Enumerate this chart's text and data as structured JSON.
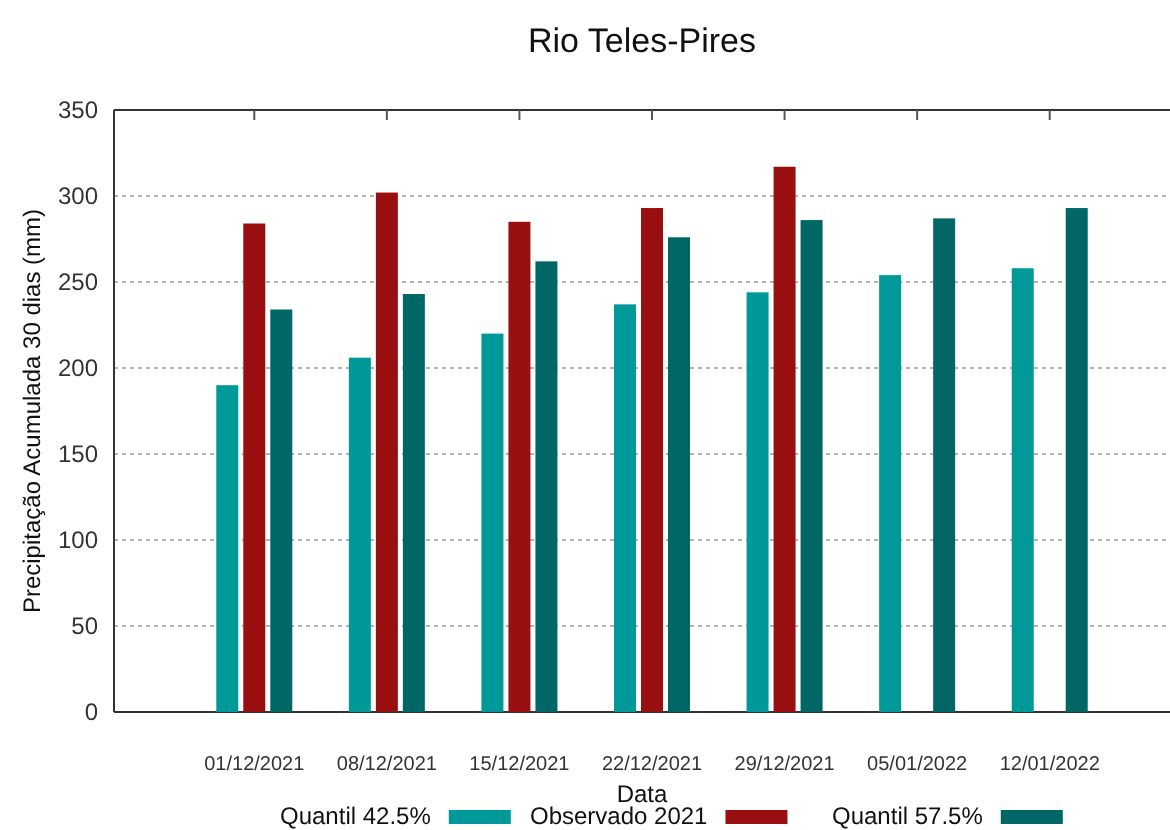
{
  "chart_data": {
    "type": "bar",
    "title": "Rio Teles-Pires",
    "xlabel": "Data",
    "ylabel": "Precipitação Acumulada 30 dias (mm)",
    "categories": [
      "01/12/2021",
      "08/12/2021",
      "15/12/2021",
      "22/12/2021",
      "29/12/2021",
      "05/01/2022",
      "12/01/2022"
    ],
    "series": [
      {
        "name": "Quantil 42.5%",
        "color": "#009999",
        "values": [
          190,
          206,
          220,
          237,
          244,
          254,
          258
        ]
      },
      {
        "name": "Observado 2021",
        "color": "#990e0e",
        "values": [
          284,
          302,
          285,
          293,
          317,
          null,
          null
        ]
      },
      {
        "name": "Quantil 57.5%",
        "color": "#006766",
        "values": [
          234,
          243,
          262,
          276,
          286,
          287,
          293
        ]
      }
    ],
    "ylim": [
      0,
      350
    ],
    "yticks": [
      0,
      50,
      100,
      150,
      200,
      250,
      300,
      350
    ],
    "grid": "y",
    "legend": "bottom"
  }
}
